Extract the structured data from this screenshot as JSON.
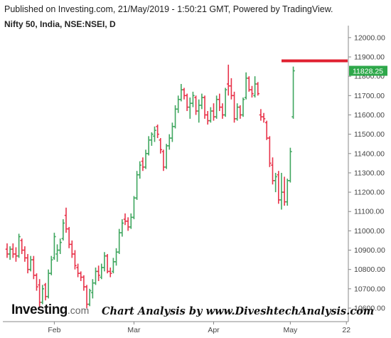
{
  "header": {
    "published": "Published on Investing.com, 21/May/2019 - 1:50:21 GMT, Powered by TradingView.",
    "symbol": "Nifty 50, India, NSE:NSEI, D"
  },
  "footer": {
    "logo_main": "Investing",
    "logo_domain": ".com",
    "credit": "Chart Analysis by www.DiveshtechAnalysis.com"
  },
  "colors": {
    "up": "#3fa65f",
    "down": "#e8334a",
    "resistance": "#e02030",
    "last_price_bg": "#2ea84a"
  },
  "chart_data": {
    "type": "ohlc",
    "title": "Nifty 50, India, NSE:NSEI, D",
    "y_ticks": [
      10600,
      10700,
      10800,
      10900,
      11000,
      11100,
      11200,
      11300,
      11400,
      11500,
      11600,
      11700,
      11800,
      11900,
      12000
    ],
    "y_tick_labels": [
      "10600.00",
      "10700.00",
      "10800.00",
      "10900.00",
      "11000.00",
      "11100.00",
      "11200.00",
      "11300.00",
      "11400.00",
      "11500.00",
      "11600.00",
      "11700.00",
      "11800.00",
      "11900.00",
      "12000.00"
    ],
    "ylim": [
      10530,
      12040
    ],
    "x_labels": [
      {
        "label": "Feb",
        "index": 16
      },
      {
        "label": "Mar",
        "index": 43
      },
      {
        "label": "Apr",
        "index": 70
      },
      {
        "label": "May",
        "index": 96
      },
      {
        "label": "22",
        "index": 115
      }
    ],
    "last_price": 11828.25,
    "last_price_label": "11828.25",
    "resistance_level": 11880,
    "bars": [
      {
        "o": 10905,
        "h": 10935,
        "l": 10860,
        "c": 10880
      },
      {
        "o": 10880,
        "h": 10920,
        "l": 10850,
        "c": 10905
      },
      {
        "o": 10905,
        "h": 10935,
        "l": 10860,
        "c": 10880
      },
      {
        "o": 10880,
        "h": 10915,
        "l": 10840,
        "c": 10870
      },
      {
        "o": 10870,
        "h": 10985,
        "l": 10860,
        "c": 10970
      },
      {
        "o": 10950,
        "h": 10960,
        "l": 10880,
        "c": 10900
      },
      {
        "o": 10900,
        "h": 10920,
        "l": 10840,
        "c": 10860
      },
      {
        "o": 10860,
        "h": 10880,
        "l": 10780,
        "c": 10800
      },
      {
        "o": 10800,
        "h": 10870,
        "l": 10790,
        "c": 10850
      },
      {
        "o": 10850,
        "h": 10870,
        "l": 10750,
        "c": 10770
      },
      {
        "o": 10770,
        "h": 10780,
        "l": 10690,
        "c": 10710
      },
      {
        "o": 10720,
        "h": 10750,
        "l": 10600,
        "c": 10630
      },
      {
        "o": 10630,
        "h": 10720,
        "l": 10620,
        "c": 10700
      },
      {
        "o": 10720,
        "h": 10730,
        "l": 10640,
        "c": 10660
      },
      {
        "o": 10660,
        "h": 10800,
        "l": 10650,
        "c": 10780
      },
      {
        "o": 10780,
        "h": 10870,
        "l": 10770,
        "c": 10850
      },
      {
        "o": 10860,
        "h": 10990,
        "l": 10850,
        "c": 10970
      },
      {
        "o": 10880,
        "h": 10930,
        "l": 10840,
        "c": 10900
      },
      {
        "o": 10900,
        "h": 10960,
        "l": 10880,
        "c": 10940
      },
      {
        "o": 10960,
        "h": 11060,
        "l": 10950,
        "c": 11040
      },
      {
        "o": 11080,
        "h": 11120,
        "l": 10990,
        "c": 11010
      },
      {
        "o": 11010,
        "h": 11020,
        "l": 10910,
        "c": 10930
      },
      {
        "o": 10930,
        "h": 10950,
        "l": 10860,
        "c": 10880
      },
      {
        "o": 10880,
        "h": 10900,
        "l": 10800,
        "c": 10820
      },
      {
        "o": 10810,
        "h": 10830,
        "l": 10760,
        "c": 10780
      },
      {
        "o": 10780,
        "h": 10790,
        "l": 10740,
        "c": 10760
      },
      {
        "o": 10760,
        "h": 10770,
        "l": 10690,
        "c": 10710
      },
      {
        "o": 10710,
        "h": 10720,
        "l": 10600,
        "c": 10620
      },
      {
        "o": 10620,
        "h": 10700,
        "l": 10610,
        "c": 10690
      },
      {
        "o": 10680,
        "h": 10750,
        "l": 10650,
        "c": 10730
      },
      {
        "o": 10730,
        "h": 10810,
        "l": 10720,
        "c": 10790
      },
      {
        "o": 10790,
        "h": 10820,
        "l": 10740,
        "c": 10770
      },
      {
        "o": 10760,
        "h": 10830,
        "l": 10750,
        "c": 10810
      },
      {
        "o": 10810,
        "h": 10890,
        "l": 10790,
        "c": 10870
      },
      {
        "o": 10870,
        "h": 10880,
        "l": 10780,
        "c": 10790
      },
      {
        "o": 10790,
        "h": 10810,
        "l": 10760,
        "c": 10780
      },
      {
        "o": 10790,
        "h": 10860,
        "l": 10780,
        "c": 10840
      },
      {
        "o": 10840,
        "h": 10910,
        "l": 10820,
        "c": 10890
      },
      {
        "o": 10890,
        "h": 11010,
        "l": 10880,
        "c": 10990
      },
      {
        "o": 10990,
        "h": 11060,
        "l": 10970,
        "c": 11040
      },
      {
        "o": 11060,
        "h": 11090,
        "l": 11030,
        "c": 11050
      },
      {
        "o": 11050,
        "h": 11070,
        "l": 11000,
        "c": 11020
      },
      {
        "o": 11020,
        "h": 11090,
        "l": 11010,
        "c": 11070
      },
      {
        "o": 11070,
        "h": 11180,
        "l": 11060,
        "c": 11170
      },
      {
        "o": 11170,
        "h": 11310,
        "l": 11160,
        "c": 11290
      },
      {
        "o": 11290,
        "h": 11360,
        "l": 11270,
        "c": 11340
      },
      {
        "o": 11360,
        "h": 11380,
        "l": 11310,
        "c": 11330
      },
      {
        "o": 11330,
        "h": 11420,
        "l": 11320,
        "c": 11400
      },
      {
        "o": 11400,
        "h": 11490,
        "l": 11390,
        "c": 11470
      },
      {
        "o": 11470,
        "h": 11510,
        "l": 11440,
        "c": 11500
      },
      {
        "o": 11490,
        "h": 11540,
        "l": 11460,
        "c": 11520
      },
      {
        "o": 11540,
        "h": 11550,
        "l": 11480,
        "c": 11500
      },
      {
        "o": 11470,
        "h": 11480,
        "l": 11400,
        "c": 11420
      },
      {
        "o": 11410,
        "h": 11420,
        "l": 11310,
        "c": 11330
      },
      {
        "o": 11330,
        "h": 11450,
        "l": 11320,
        "c": 11440
      },
      {
        "o": 11440,
        "h": 11500,
        "l": 11420,
        "c": 11480
      },
      {
        "o": 11480,
        "h": 11560,
        "l": 11460,
        "c": 11540
      },
      {
        "o": 11540,
        "h": 11650,
        "l": 11530,
        "c": 11630
      },
      {
        "o": 11630,
        "h": 11700,
        "l": 11610,
        "c": 11680
      },
      {
        "o": 11680,
        "h": 11760,
        "l": 11670,
        "c": 11730
      },
      {
        "o": 11730,
        "h": 11740,
        "l": 11680,
        "c": 11700
      },
      {
        "o": 11700,
        "h": 11710,
        "l": 11620,
        "c": 11640
      },
      {
        "o": 11640,
        "h": 11690,
        "l": 11580,
        "c": 11660
      },
      {
        "o": 11660,
        "h": 11720,
        "l": 11640,
        "c": 11700
      },
      {
        "o": 11690,
        "h": 11700,
        "l": 11600,
        "c": 11620
      },
      {
        "o": 11620,
        "h": 11680,
        "l": 11560,
        "c": 11650
      },
      {
        "o": 11650,
        "h": 11710,
        "l": 11630,
        "c": 11690
      },
      {
        "o": 11690,
        "h": 11700,
        "l": 11580,
        "c": 11600
      },
      {
        "o": 11600,
        "h": 11620,
        "l": 11550,
        "c": 11570
      },
      {
        "o": 11570,
        "h": 11640,
        "l": 11560,
        "c": 11620
      },
      {
        "o": 11620,
        "h": 11660,
        "l": 11570,
        "c": 11590
      },
      {
        "o": 11590,
        "h": 11700,
        "l": 11580,
        "c": 11680
      },
      {
        "o": 11680,
        "h": 11710,
        "l": 11620,
        "c": 11640
      },
      {
        "o": 11640,
        "h": 11660,
        "l": 11580,
        "c": 11600
      },
      {
        "o": 11600,
        "h": 11740,
        "l": 11590,
        "c": 11730
      },
      {
        "o": 11760,
        "h": 11860,
        "l": 11700,
        "c": 11750
      },
      {
        "o": 11750,
        "h": 11790,
        "l": 11680,
        "c": 11700
      },
      {
        "o": 11700,
        "h": 11720,
        "l": 11560,
        "c": 11580
      },
      {
        "o": 11580,
        "h": 11660,
        "l": 11570,
        "c": 11640
      },
      {
        "o": 11640,
        "h": 11650,
        "l": 11580,
        "c": 11600
      },
      {
        "o": 11600,
        "h": 11690,
        "l": 11590,
        "c": 11680
      },
      {
        "o": 11690,
        "h": 11820,
        "l": 11680,
        "c": 11790
      },
      {
        "o": 11790,
        "h": 11800,
        "l": 11720,
        "c": 11730
      },
      {
        "o": 11730,
        "h": 11750,
        "l": 11690,
        "c": 11710
      },
      {
        "o": 11700,
        "h": 11800,
        "l": 11690,
        "c": 11760
      },
      {
        "o": 11760,
        "h": 11770,
        "l": 11700,
        "c": 11710
      },
      {
        "o": 11600,
        "h": 11630,
        "l": 11570,
        "c": 11590
      },
      {
        "o": 11590,
        "h": 11610,
        "l": 11560,
        "c": 11580
      },
      {
        "o": 11560,
        "h": 11570,
        "l": 11470,
        "c": 11480
      },
      {
        "o": 11480,
        "h": 11490,
        "l": 11330,
        "c": 11350
      },
      {
        "o": 11340,
        "h": 11380,
        "l": 11240,
        "c": 11260
      },
      {
        "o": 11260,
        "h": 11300,
        "l": 11200,
        "c": 11280
      },
      {
        "o": 11290,
        "h": 11310,
        "l": 11140,
        "c": 11160
      },
      {
        "o": 11160,
        "h": 11300,
        "l": 11110,
        "c": 11200
      },
      {
        "o": 11200,
        "h": 11280,
        "l": 11130,
        "c": 11150
      },
      {
        "o": 11150,
        "h": 11270,
        "l": 11130,
        "c": 11260
      },
      {
        "o": 11260,
        "h": 11430,
        "l": 11250,
        "c": 11410
      },
      {
        "o": 11590,
        "h": 11850,
        "l": 11580,
        "c": 11828.25
      }
    ]
  }
}
